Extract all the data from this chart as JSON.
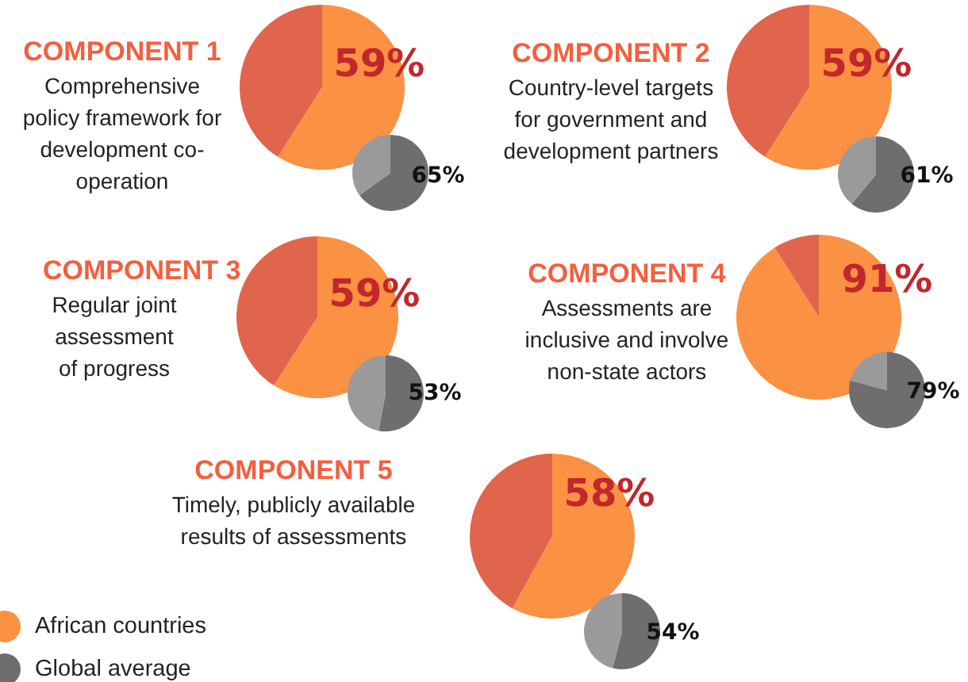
{
  "chart_data": [
    {
      "type": "pie",
      "title": "COMPONENT 1",
      "subtitle": "Comprehensive policy framework for development co-operation",
      "categories": [
        null,
        null
      ],
      "values": [
        59,
        41
      ],
      "colors": [
        "#fb9143",
        "#e1654c"
      ],
      "value_labels": [
        "59%",
        null
      ]
    },
    {
      "type": "pie",
      "categories": [
        null,
        null
      ],
      "values": [
        65,
        35
      ],
      "colors": [
        "#6e6e6e",
        "#9a9a9a"
      ],
      "value_labels": [
        "65%",
        null
      ]
    },
    {
      "type": "pie",
      "title": "COMPONENT 2",
      "subtitle": "Country-level targets for government and development partners",
      "categories": [
        null,
        null
      ],
      "values": [
        59,
        41
      ],
      "colors": [
        "#fb9143",
        "#e1654c"
      ],
      "value_labels": [
        "59%",
        null
      ]
    },
    {
      "type": "pie",
      "categories": [
        null,
        null
      ],
      "values": [
        61,
        39
      ],
      "colors": [
        "#6e6e6e",
        "#9a9a9a"
      ],
      "value_labels": [
        "61%",
        null
      ]
    },
    {
      "type": "pie",
      "title": "COMPONENT 3",
      "subtitle": "Regular joint assessment of progress",
      "categories": [
        null,
        null
      ],
      "values": [
        59,
        41
      ],
      "colors": [
        "#fb9143",
        "#e1654c"
      ],
      "value_labels": [
        "59%",
        null
      ]
    },
    {
      "type": "pie",
      "categories": [
        null,
        null
      ],
      "values": [
        53,
        47
      ],
      "colors": [
        "#6e6e6e",
        "#9a9a9a"
      ],
      "value_labels": [
        "53%",
        null
      ]
    },
    {
      "type": "pie",
      "title": "COMPONENT 4",
      "subtitle": "Assessments are inclusive and involve non-state actors",
      "categories": [
        null,
        null
      ],
      "values": [
        91,
        9
      ],
      "colors": [
        "#fb9143",
        "#e1654c"
      ],
      "value_labels": [
        "91%",
        null
      ]
    },
    {
      "type": "pie",
      "categories": [
        null,
        null
      ],
      "values": [
        79,
        21
      ],
      "colors": [
        "#6e6e6e",
        "#9a9a9a"
      ],
      "value_labels": [
        "79%",
        null
      ]
    },
    {
      "type": "pie",
      "title": "COMPONENT 5",
      "subtitle": "Timely, publicly available results of assessments",
      "categories": [
        null,
        null
      ],
      "values": [
        58,
        42
      ],
      "colors": [
        "#fb9143",
        "#e1654c"
      ],
      "value_labels": [
        "58%",
        null
      ]
    },
    {
      "type": "pie",
      "categories": [
        null,
        null
      ],
      "values": [
        54,
        46
      ],
      "colors": [
        "#6e6e6e",
        "#9a9a9a"
      ],
      "value_labels": [
        "54%",
        null
      ]
    },
    {
      "type": "other",
      "categories": [
        "African countries",
        "Global average"
      ],
      "colors": [
        "#fb9143",
        "#6e6e6e"
      ]
    }
  ]
}
